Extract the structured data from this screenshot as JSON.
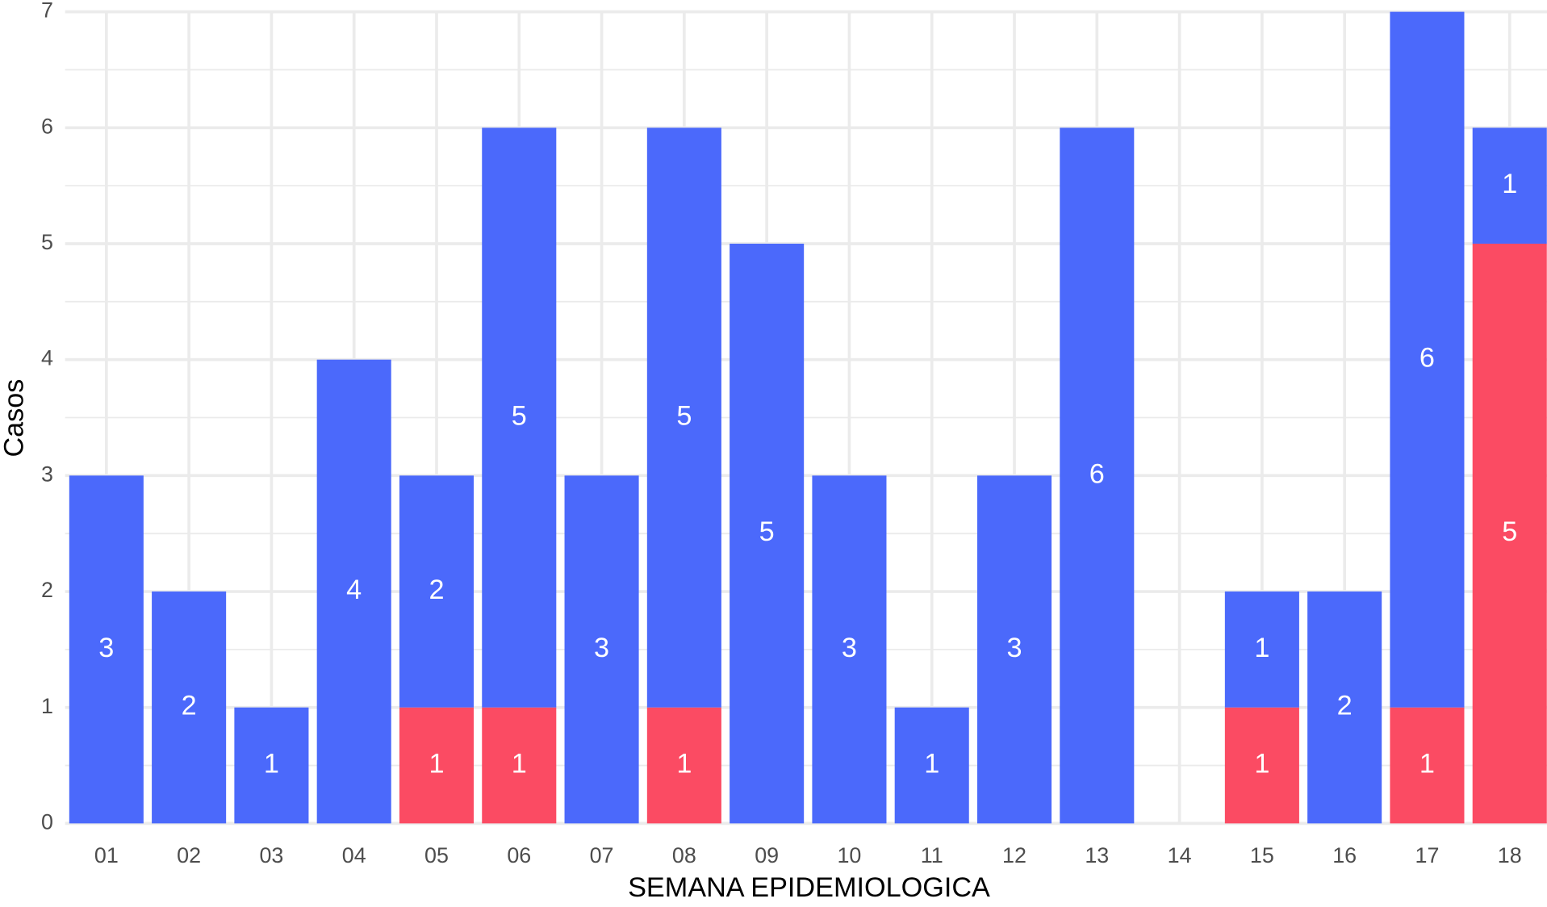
{
  "chart_data": {
    "type": "stacked-bar",
    "x_label": "SEMANA EPIDEMIOLOGICA",
    "y_label": "Casos",
    "categories": [
      "01",
      "02",
      "03",
      "04",
      "05",
      "06",
      "07",
      "08",
      "09",
      "10",
      "11",
      "12",
      "13",
      "14",
      "15",
      "16",
      "17",
      "18"
    ],
    "series": [
      {
        "color": "#fb4b63",
        "values": [
          0,
          0,
          0,
          0,
          1,
          1,
          0,
          1,
          0,
          0,
          0,
          0,
          0,
          0,
          1,
          0,
          1,
          5
        ]
      },
      {
        "color": "#4b69fb",
        "values": [
          3,
          2,
          1,
          4,
          2,
          5,
          3,
          5,
          5,
          3,
          1,
          3,
          6,
          0,
          1,
          2,
          6,
          1
        ]
      }
    ],
    "ylim": [
      0,
      7
    ],
    "yticks": [
      0,
      1,
      2,
      3,
      4,
      5,
      6,
      7
    ],
    "grid": true
  }
}
